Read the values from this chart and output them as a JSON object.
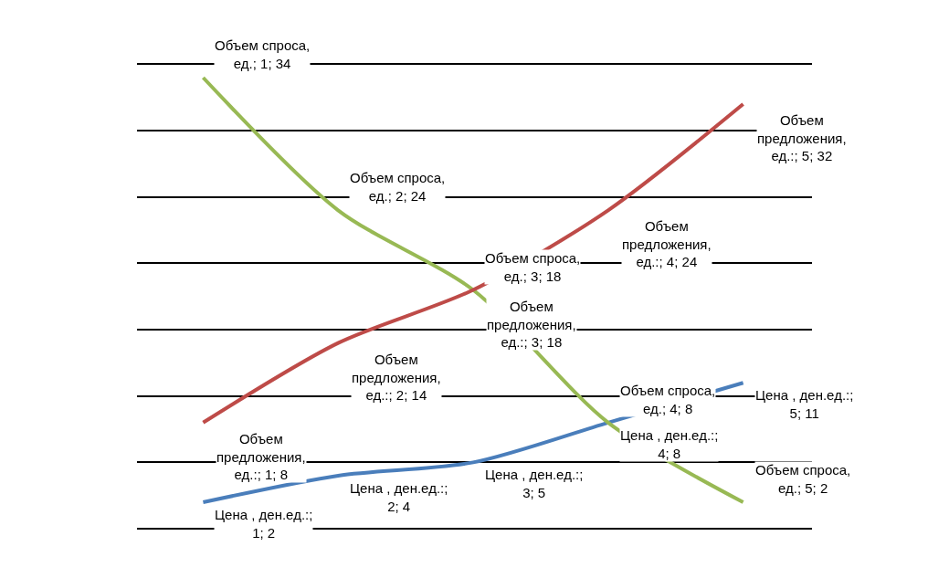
{
  "chart_data": {
    "type": "line",
    "categories": [
      null,
      null,
      null,
      null,
      null
    ],
    "grid": "y",
    "tick_labels": false,
    "legend": false,
    "marker": "none",
    "line_style": "solid",
    "series": [
      {
        "color": "#4a7ebb",
        "values": [
          2,
          4,
          5,
          8,
          11
        ],
        "value_labels": [
          "Цена , ден.ед.:; 1; 2",
          "Цена , ден.ед.:; 2; 4",
          "Цена , ден.ед.:; 3; 5",
          "Цена , ден.ед.:; 4; 8",
          "Цена , ден.ед.:; 5; 11"
        ]
      },
      {
        "color": "#98b954",
        "values": [
          34,
          24,
          18,
          8,
          2
        ],
        "value_labels": [
          "Объем спроса, ед.; 1; 34",
          "Объем спроса, ед.; 2; 24",
          "Объем спроса, ед.; 3; 18",
          "Объем спроса, ед.; 4; 8",
          "Объем спроса, ед.; 5; 2"
        ]
      },
      {
        "color": "#be4b48",
        "values": [
          8,
          14,
          18,
          24,
          32
        ],
        "value_labels": [
          "Объем предложения, ед.:; 1; 8",
          "Объем предложения, ед.:; 2; 14",
          "Объем предложения, ед.:; 3; 18",
          "Объем предложения, ед.:; 4; 24",
          "Объем предложения, ед.:; 5; 32"
        ]
      }
    ]
  }
}
